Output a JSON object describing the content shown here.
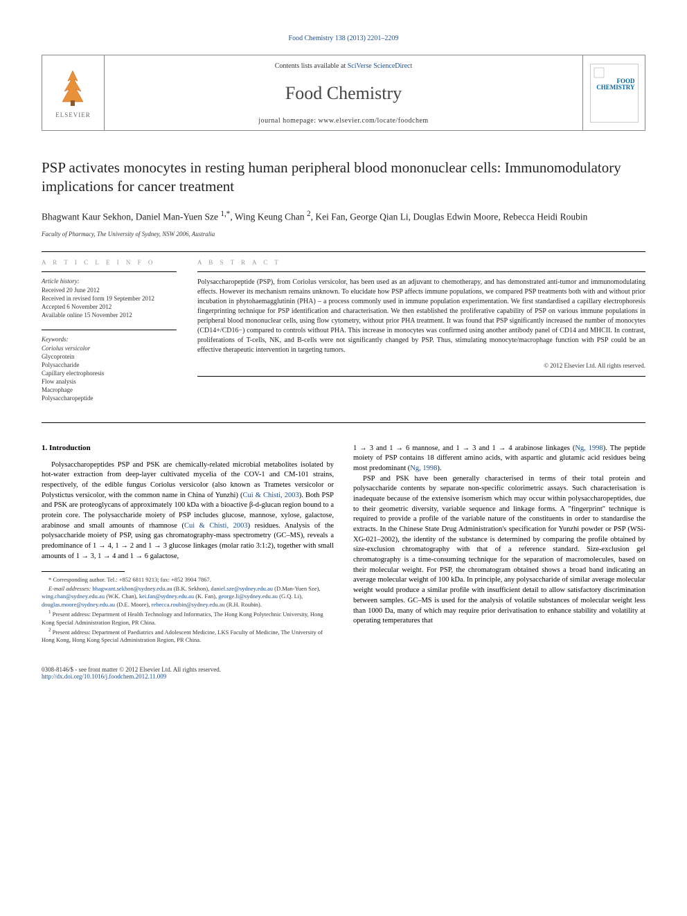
{
  "top_citation": "Food Chemistry 138 (2013) 2201–2209",
  "header": {
    "contents_line_pre": "Contents lists available at ",
    "contents_line_link": "SciVerse ScienceDirect",
    "journal": "Food Chemistry",
    "homepage_label": "journal homepage: ",
    "homepage_url": "www.elsevier.com/locate/foodchem",
    "elsevier_label": "ELSEVIER",
    "cover_text_1": "FOOD",
    "cover_text_2": "CHEMISTRY"
  },
  "title": "PSP activates monocytes in resting human peripheral blood mononuclear cells: Immunomodulatory implications for cancer treatment",
  "authors_html": "Bhagwant Kaur Sekhon, Daniel Man-Yuen Sze <sup>1,*</sup>, Wing Keung Chan <sup>2</sup>, Kei Fan, George Qian Li, Douglas Edwin Moore, Rebecca Heidi Roubin",
  "affiliation": "Faculty of Pharmacy, The University of Sydney, NSW 2006, Australia",
  "article_info_heading": "A R T I C L E   I N F O",
  "abstract_heading": "A B S T R A C T",
  "history": {
    "heading": "Article history:",
    "lines": [
      "Received 20 June 2012",
      "Received in revised form 19 September 2012",
      "Accepted 6 November 2012",
      "Available online 15 November 2012"
    ]
  },
  "keywords": {
    "heading": "Keywords:",
    "items": [
      "Coriolus versicolor",
      "Glycoprotein",
      "Polysaccharide",
      "Capillary electrophoresis",
      "Flow analysis",
      "Macrophage",
      "Polysaccharopeptide"
    ]
  },
  "abstract": "Polysaccharopeptide (PSP), from Coriolus versicolor, has been used as an adjuvant to chemotherapy, and has demonstrated anti-tumor and immunomodulating effects. However its mechanism remains unknown. To elucidate how PSP affects immune populations, we compared PSP treatments both with and without prior incubation in phytohaemagglutinin (PHA) – a process commonly used in immune population experimentation. We first standardised a capillary electrophoresis fingerprinting technique for PSP identification and characterisation. We then established the proliferative capability of PSP on various immune populations in peripheral blood mononuclear cells, using flow cytometry, without prior PHA treatment. It was found that PSP significantly increased the number of monocytes (CD14+/CD16−) compared to controls without PHA. This increase in monocytes was confirmed using another antibody panel of CD14 and MHCII. In contrast, proliferations of T-cells, NK, and B-cells were not significantly changed by PSP. Thus, stimulating monocyte/macrophage function with PSP could be an effective therapeutic intervention in targeting tumors.",
  "abstract_copyright": "© 2012 Elsevier Ltd. All rights reserved.",
  "intro_heading": "1. Introduction",
  "col1_paras": [
    "Polysaccharopeptides PSP and PSK are chemically-related microbial metabolites isolated by hot-water extraction from deep-layer cultivated mycelia of the COV-1 and CM-101 strains, respectively, of the edible fungus Coriolus versicolor (also known as Trametes versicolor or Polystictus versicolor, with the common name in China of Yunzhi) (<span class=\"cite\">Cui & Chisti, 2003</span>). Both PSP and PSK are proteoglycans of approximately 100 kDa with a bioactive β-d-glucan region bound to a protein core. The polysaccharide moiety of PSP includes glucose, mannose, xylose, galactose, arabinose and small amounts of rhamnose (<span class=\"cite\">Cui & Chisti, 2003</span>) residues. Analysis of the polysaccharide moiety of PSP, using gas chromatography-mass spectrometry (GC–MS), reveals a predominance of 1 → 4, 1 → 2 and 1 → 3 glucose linkages (molar ratio 3:1:2), together with small amounts of 1 → 3, 1 → 4 and 1 → 6 galactose,"
  ],
  "col2_paras": [
    "1 → 3 and 1 → 6 mannose, and 1 → 3 and 1 → 4 arabinose linkages (<span class=\"cite\">Ng, 1998</span>). The peptide moiety of PSP contains 18 different amino acids, with aspartic and glutamic acid residues being most predominant (<span class=\"cite\">Ng, 1998</span>).",
    "PSP and PSK have been generally characterised in terms of their total protein and polysaccharide contents by separate non-specific colorimetric assays. Such characterisation is inadequate because of the extensive isomerism which may occur within polysaccharopeptides, due to their geometric diversity, variable sequence and linkage forms. A \"fingerprint\" technique is required to provide a profile of the variable nature of the constituents in order to standardise the extracts. In the Chinese State Drug Administration's specification for Yunzhi powder or PSP (WSi-XG-021–2002), the identity of the substance is determined by comparing the profile obtained by size-exclusion chromatography with that of a reference standard. Size-exclusion gel chromatography is a time-consuming technique for the separation of macromolecules, based on their molecular weight. For PSP, the chromatogram obtained shows a broad band indicating an average molecular weight of 100 kDa. In principle, any polysaccharide of similar average molecular weight would produce a similar profile with insufficient detail to allow satisfactory discrimination between samples. GC–MS is used for the analysis of volatile substances of molecular weight less than 1000 Da, many of which may require prior derivatisation to enhance stability and volatility at operating temperatures that"
  ],
  "footnotes": {
    "corresponding": "* Corresponding author. Tel.: +852 6811 9213; fax: +852 3904 7867.",
    "email_label": "E-mail addresses: ",
    "emails_html": "<span class=\"link\">bhagwant.sekhon@sydney.edu.au</span> (B.K. Sekhon), <span class=\"link\">daniel.sze@sydney.edu.au</span> (D.Man-Yuen Sze), <span class=\"link\">wing.chan@sydney.edu.au</span> (W.K. Chan), <span class=\"link\">kei.fan@sydney.edu.au</span> (K. Fan), <span class=\"link\">george.li@sydney.edu.au</span> (G.Q. Li), <span class=\"link\">douglas.moore@sydney.edu.au</span> (D.E. Moore), <span class=\"link\">rebecca.roubin@sydney.edu.au</span> (R.H. Roubin).",
    "note1": "<span class=\"sup\">1</span> Present address: Department of Health Technology and Informatics, The Hong Kong Polytechnic University, Hong Kong Special Administration Region, PR China.",
    "note2": "<span class=\"sup\">2</span> Present address: Department of Paediatrics and Adolescent Medicine, LKS Faculty of Medicine, The University of Hong Kong, Hong Kong Special Administration Region, PR China."
  },
  "footer": {
    "left_line1": "0308-8146/$ - see front matter © 2012 Elsevier Ltd. All rights reserved.",
    "left_line2": "http://dx.doi.org/10.1016/j.foodchem.2012.11.009"
  },
  "colors": {
    "link": "#1a4d8f",
    "text": "#000000",
    "meta_text": "#333333",
    "heading_gray": "#999999"
  }
}
